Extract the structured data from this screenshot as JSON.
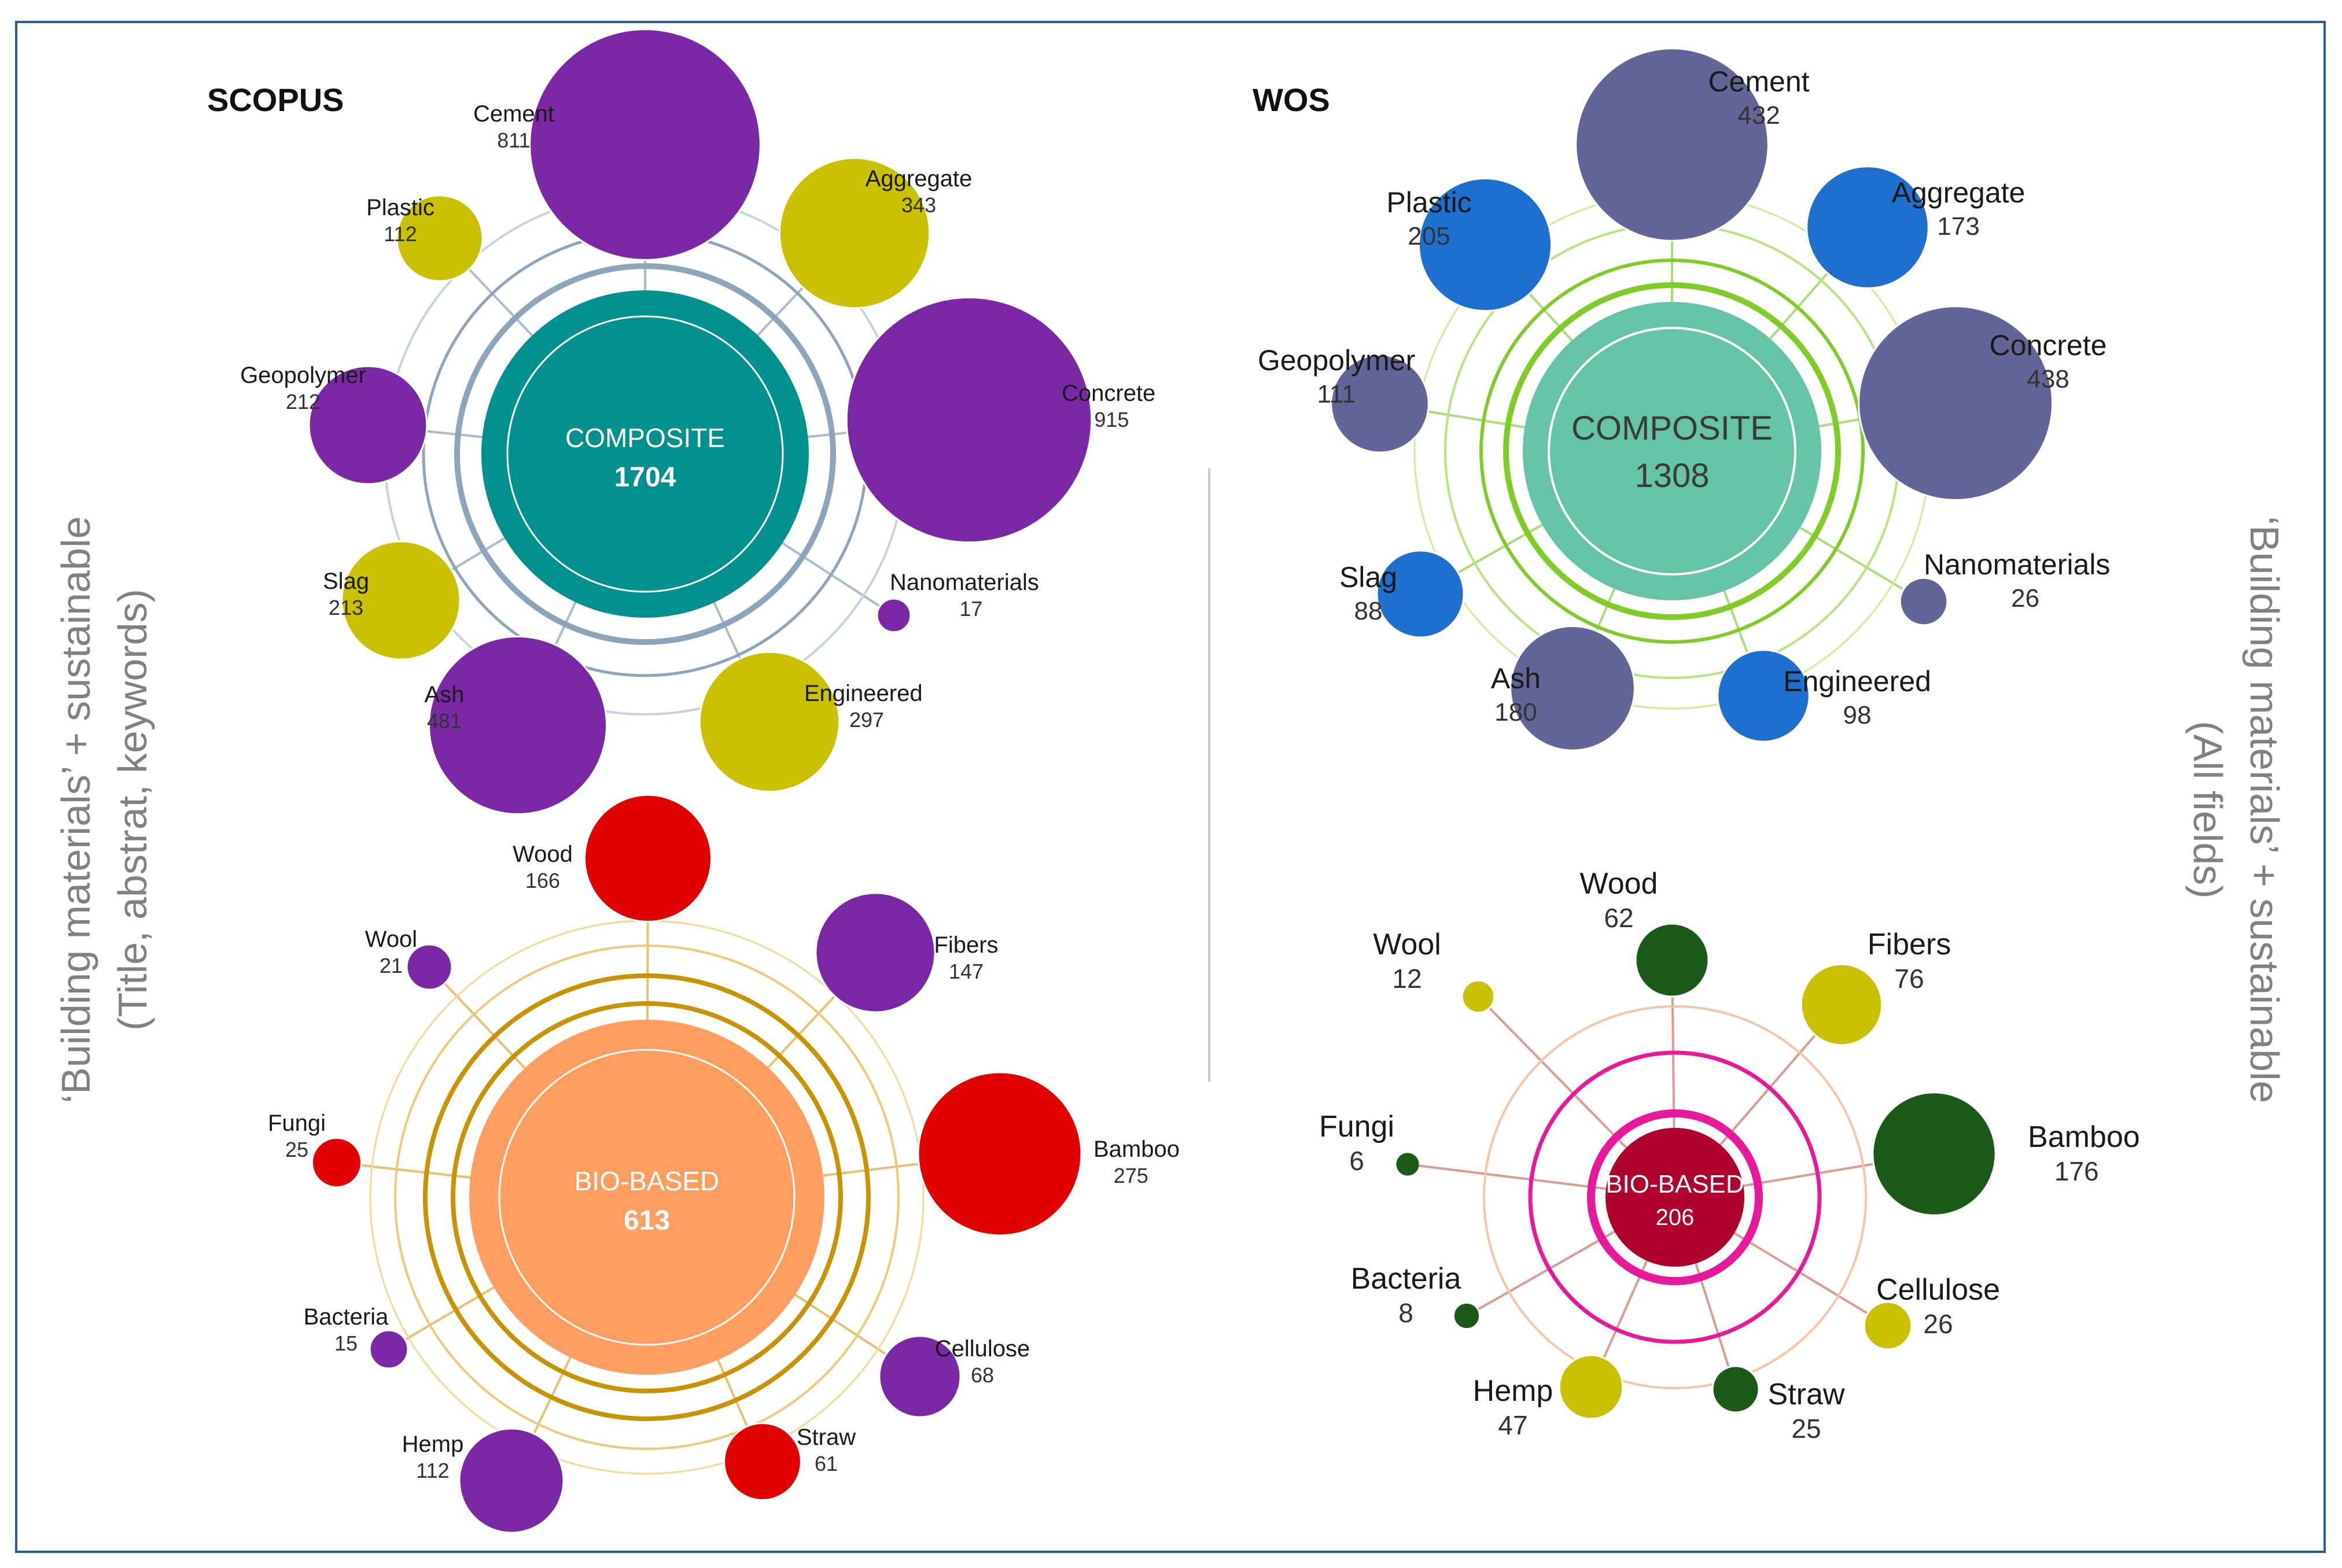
{
  "sections": {
    "scopus_label": "SCOPUS",
    "wos_label": "WOS"
  },
  "side_labels": {
    "left_line1": "‘Building materials’ + sustainable",
    "left_line2": "(Title, abstrat, keywords)",
    "right_line1": "‘Building materials’ + sustainable",
    "right_line2": "(All fields)"
  },
  "colors": {
    "scopus_purple": "#7b28a6",
    "scopus_yellow": "#c9c000",
    "scopus_red": "#e00000",
    "scopus_teal": "#00908e",
    "scopus_orange": "#ff9e60",
    "wos_slate": "#636599",
    "wos_blue": "#1f6fcf",
    "wos_mint": "#66c4a6",
    "wos_green": "#1c5a19",
    "wos_olive": "#c8c000",
    "wos_crimson": "#b0002d"
  },
  "networks": [
    {
      "id": "scopus-composite",
      "center": {
        "label": "COMPOSITE",
        "value": "1704"
      },
      "nodes": [
        {
          "name": "Cement",
          "value": "811",
          "color": "#7b28a6"
        },
        {
          "name": "Aggregate",
          "value": "343",
          "color": "#c9c000"
        },
        {
          "name": "Concrete",
          "value": "915",
          "color": "#7b28a6"
        },
        {
          "name": "Nanomaterials",
          "value": "17",
          "color": "#7b28a6"
        },
        {
          "name": "Engineered",
          "value": "297",
          "color": "#c9c000"
        },
        {
          "name": "Ash",
          "value": "481",
          "color": "#7b28a6"
        },
        {
          "name": "Slag",
          "value": "213",
          "color": "#c9c000"
        },
        {
          "name": "Geopolymer",
          "value": "212",
          "color": "#7b28a6"
        },
        {
          "name": "Plastic",
          "value": "112",
          "color": "#c9c000"
        }
      ]
    },
    {
      "id": "scopus-biobased",
      "center": {
        "label": "BIO-BASED",
        "value": "613"
      },
      "nodes": [
        {
          "name": "Wood",
          "value": "166",
          "color": "#e00000"
        },
        {
          "name": "Fibers",
          "value": "147",
          "color": "#7b28a6"
        },
        {
          "name": "Bamboo",
          "value": "275",
          "color": "#e00000"
        },
        {
          "name": "Cellulose",
          "value": "68",
          "color": "#7b28a6"
        },
        {
          "name": "Straw",
          "value": "61",
          "color": "#e00000"
        },
        {
          "name": "Hemp",
          "value": "112",
          "color": "#7b28a6"
        },
        {
          "name": "Bacteria",
          "value": "15",
          "color": "#7b28a6"
        },
        {
          "name": "Fungi",
          "value": "25",
          "color": "#e00000"
        },
        {
          "name": "Wool",
          "value": "21",
          "color": "#7b28a6"
        }
      ]
    },
    {
      "id": "wos-composite",
      "center": {
        "label": "COMPOSITE",
        "value": "1308"
      },
      "nodes": [
        {
          "name": "Cement",
          "value": "432",
          "color": "#636599"
        },
        {
          "name": "Aggregate",
          "value": "173",
          "color": "#1f6fcf"
        },
        {
          "name": "Concrete",
          "value": "438",
          "color": "#636599"
        },
        {
          "name": "Nanomaterials",
          "value": "26",
          "color": "#636599"
        },
        {
          "name": "Engineered",
          "value": "98",
          "color": "#1f6fcf"
        },
        {
          "name": "Ash",
          "value": "180",
          "color": "#636599"
        },
        {
          "name": "Slag",
          "value": "88",
          "color": "#1f6fcf"
        },
        {
          "name": "Geopolymer",
          "value": "111",
          "color": "#636599"
        },
        {
          "name": "Plastic",
          "value": "205",
          "color": "#1f6fcf"
        }
      ]
    },
    {
      "id": "wos-biobased",
      "center": {
        "label": "BIO-BASED",
        "value": "206"
      },
      "nodes": [
        {
          "name": "Wood",
          "value": "62",
          "color": "#1c5a19"
        },
        {
          "name": "Fibers",
          "value": "76",
          "color": "#c8c000"
        },
        {
          "name": "Bamboo",
          "value": "176",
          "color": "#1c5a19"
        },
        {
          "name": "Cellulose",
          "value": "26",
          "color": "#c8c000"
        },
        {
          "name": "Straw",
          "value": "25",
          "color": "#1c5a19"
        },
        {
          "name": "Hemp",
          "value": "47",
          "color": "#c8c000"
        },
        {
          "name": "Bacteria",
          "value": "8",
          "color": "#1c5a19"
        },
        {
          "name": "Fungi",
          "value": "6",
          "color": "#1c5a19"
        },
        {
          "name": "Wool",
          "value": "12",
          "color": "#c8c000"
        }
      ]
    }
  ]
}
